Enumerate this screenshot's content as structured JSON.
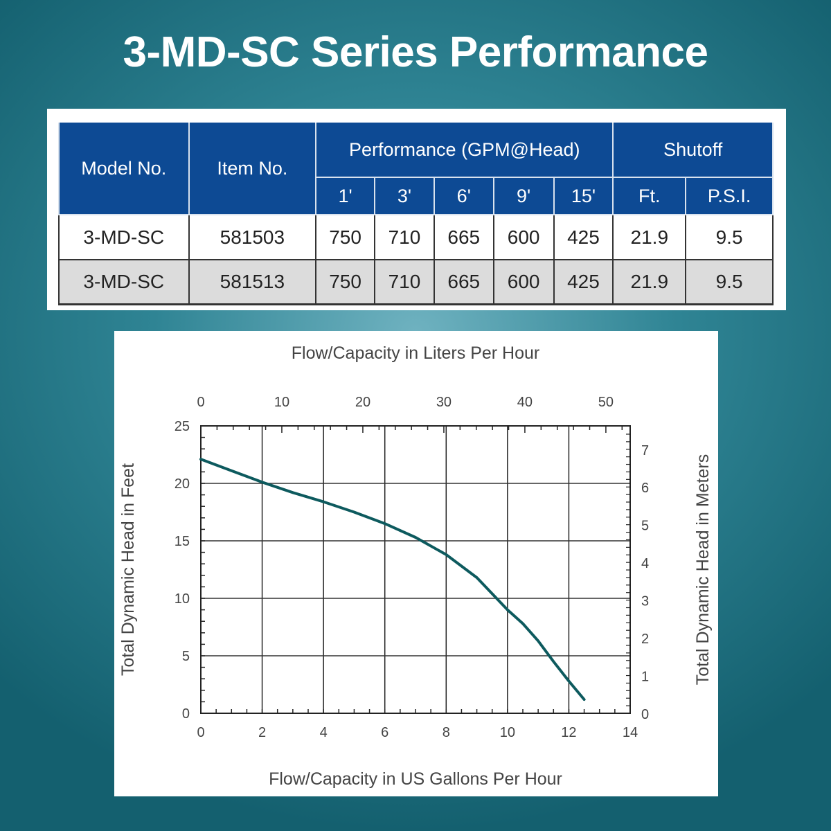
{
  "title": "3-MD-SC Series Performance",
  "table": {
    "headers": {
      "model": "Model No.",
      "item": "Item No.",
      "performance": "Performance (GPM@Head)",
      "shutoff": "Shutoff"
    },
    "subheaders": [
      "1'",
      "3'",
      "6'",
      "9'",
      "15'",
      "Ft.",
      "P.S.I."
    ],
    "rows": [
      [
        "3-MD-SC",
        "581503",
        "750",
        "710",
        "665",
        "600",
        "425",
        "21.9",
        "9.5"
      ],
      [
        "3-MD-SC",
        "581513",
        "750",
        "710",
        "665",
        "600",
        "425",
        "21.9",
        "9.5"
      ]
    ],
    "header_color": "#0d4a94"
  },
  "chart_data": {
    "type": "line",
    "title": "",
    "xlabel": "Flow/Capacity in US Gallons Per Hour",
    "ylabel": "Total Dynamic Head in Feet",
    "x2label": "Flow/Capacity in Liters Per Hour",
    "y2label": "Total Dynamic Head in Meters",
    "xlim": [
      0,
      14
    ],
    "ylim": [
      0,
      25
    ],
    "x2lim": [
      0,
      53
    ],
    "y2lim": [
      0,
      7.62
    ],
    "xticks": [
      "0",
      "2",
      "4",
      "6",
      "8",
      "10",
      "12",
      "14"
    ],
    "yticks": [
      "0",
      "5",
      "10",
      "15",
      "20",
      "25"
    ],
    "x2ticks": [
      "0",
      "10",
      "20",
      "30",
      "40",
      "50"
    ],
    "y2ticks": [
      "0",
      "1",
      "2",
      "3",
      "4",
      "5",
      "6",
      "7"
    ],
    "grid": true,
    "series": [
      {
        "name": "3-MD-SC",
        "color": "#0d5a5e",
        "x": [
          0,
          1,
          2,
          3,
          4,
          5,
          6,
          7,
          8,
          9,
          10,
          10.5,
          11,
          11.5,
          12,
          12.5
        ],
        "y": [
          22.1,
          21.1,
          20.1,
          19.2,
          18.4,
          17.5,
          16.5,
          15.3,
          13.8,
          11.8,
          9.0,
          7.8,
          6.3,
          4.5,
          2.8,
          1.2
        ]
      }
    ]
  }
}
